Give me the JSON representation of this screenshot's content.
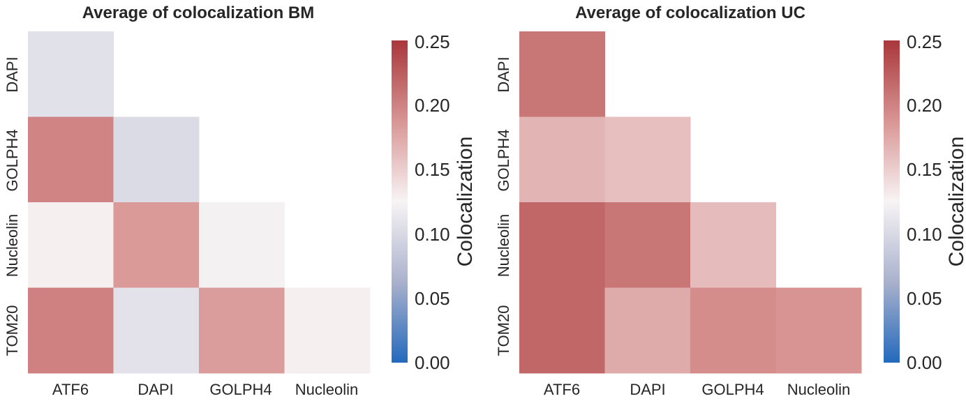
{
  "chart_data": [
    {
      "type": "heatmap",
      "title": "Average of colocalization BM",
      "x_categories": [
        "ATF6",
        "DAPI",
        "GOLPH4",
        "Nucleolin"
      ],
      "y_categories": [
        "DAPI",
        "GOLPH4",
        "Nucleolin",
        "TOM20"
      ],
      "values": [
        [
          0.107,
          null,
          null,
          null
        ],
        [
          0.198,
          0.102,
          null,
          null
        ],
        [
          0.128,
          0.184,
          0.122,
          null
        ],
        [
          0.201,
          0.108,
          0.182,
          0.128
        ]
      ],
      "mask": "upper-triangle",
      "colorbar": {
        "label": "Colocalization",
        "range": [
          0,
          0.25
        ],
        "ticks": [
          "0.00",
          "0.05",
          "0.10",
          "0.15",
          "0.20",
          "0.25"
        ],
        "colormap": "vlag",
        "colors": [
          "#2369bd",
          "#a9b1cc",
          "#f8f4f5",
          "#d89593",
          "#a9373b"
        ],
        "placement": "right"
      }
    },
    {
      "type": "heatmap",
      "title": "Average of colocalization UC",
      "x_categories": [
        "ATF6",
        "DAPI",
        "GOLPH4",
        "Nucleolin"
      ],
      "y_categories": [
        "DAPI",
        "GOLPH4",
        "Nucleolin",
        "TOM20"
      ],
      "values": [
        [
          0.208,
          null,
          null,
          null
        ],
        [
          0.167,
          0.16,
          null,
          null
        ],
        [
          0.218,
          0.208,
          0.162,
          null
        ],
        [
          0.218,
          0.173,
          0.193,
          0.188
        ]
      ],
      "mask": "upper-triangle",
      "colorbar": {
        "label": "Colocalization",
        "range": [
          0,
          0.25
        ],
        "ticks": [
          "0.00",
          "0.05",
          "0.10",
          "0.15",
          "0.20",
          "0.25"
        ],
        "colormap": "vlag",
        "colors": [
          "#2369bd",
          "#a9b1cc",
          "#f8f4f5",
          "#d89593",
          "#a9373b"
        ],
        "placement": "right"
      }
    }
  ]
}
